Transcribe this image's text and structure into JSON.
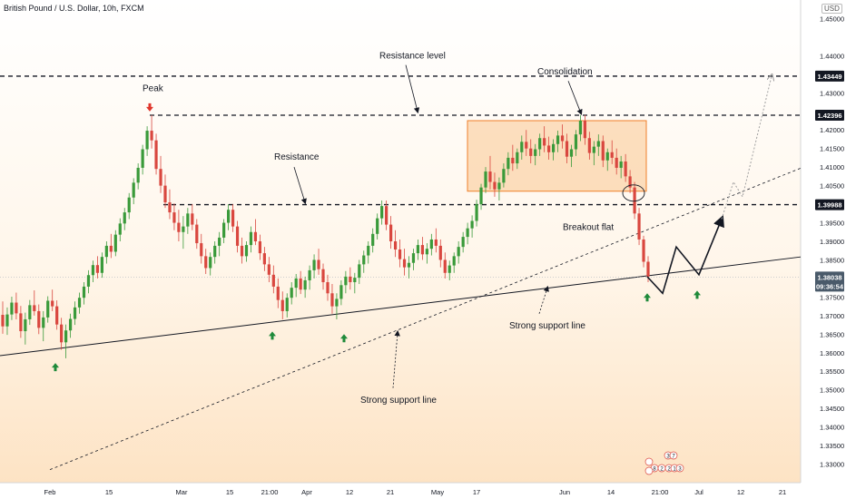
{
  "header": {
    "symbol_title": "British Pound / U.S. Dollar, 10h, FXCM",
    "currency": "USD"
  },
  "colors": {
    "up": "#26a69a",
    "up_candle": "#3a9a3a",
    "down": "#d9473f",
    "consolidation_fill": "#f9c690",
    "consolidation_stroke": "#ef7f2a",
    "arrow_up": "#1f8a3a",
    "arrow_down": "#e0352b",
    "price_tag_dark": "#131722",
    "price_tag_current": "#4a5a6a"
  },
  "chart_data": {
    "type": "candlestick",
    "ylim": [
      1.325,
      1.455
    ],
    "y_ticks": [
      "1.45000",
      "1.44000",
      "1.43000",
      "1.42000",
      "1.41500",
      "1.41000",
      "1.40500",
      "1.40000",
      "1.39500",
      "1.39000",
      "1.38500",
      "1.38000",
      "1.37500",
      "1.37000",
      "1.36500",
      "1.36000",
      "1.35500",
      "1.35000",
      "1.34500",
      "1.34000",
      "1.33500",
      "1.33000"
    ],
    "x_ticks": [
      "Feb",
      "15",
      "Mar",
      "15",
      "21:00",
      "Apr",
      "12",
      "21",
      "May",
      "17",
      "Jun",
      "14",
      "21:00",
      "Jul",
      "12",
      "21"
    ],
    "price_labels": [
      {
        "value": 1.43449,
        "text": "1.43449"
      },
      {
        "value": 1.42396,
        "text": "1.42396"
      },
      {
        "value": 1.39988,
        "text": "1.39988"
      }
    ],
    "current_price": {
      "value": 1.38038,
      "text": "1.38038",
      "countdown": "09:36:54"
    },
    "horizontal_levels": [
      1.43449,
      1.42396,
      1.39988
    ],
    "annotations": {
      "peak": "Peak",
      "resistance_level": "Resistance level",
      "resistance": "Resistance",
      "consolidation": "Consolidation",
      "breakout_flat": "Breakout flat",
      "strong_support_line_right": "Strong support line",
      "strong_support_line_left": "Strong support line"
    },
    "event_badges": [
      "3",
      "7",
      "8",
      "2",
      "2",
      "1",
      "3"
    ],
    "candles_ohlc": [
      [
        1.3702,
        1.3738,
        1.3651,
        1.3671
      ],
      [
        1.3671,
        1.3722,
        1.3648,
        1.3703
      ],
      [
        1.3703,
        1.3751,
        1.3688,
        1.3735
      ],
      [
        1.3735,
        1.3762,
        1.369,
        1.3706
      ],
      [
        1.3706,
        1.3726,
        1.364,
        1.3658
      ],
      [
        1.3658,
        1.3708,
        1.3622,
        1.369
      ],
      [
        1.369,
        1.3742,
        1.3675,
        1.3728
      ],
      [
        1.3728,
        1.3768,
        1.37,
        1.3712
      ],
      [
        1.3712,
        1.373,
        1.365,
        1.3667
      ],
      [
        1.3667,
        1.3712,
        1.3631,
        1.3695
      ],
      [
        1.3695,
        1.3752,
        1.3681,
        1.374
      ],
      [
        1.374,
        1.377,
        1.3712,
        1.3725
      ],
      [
        1.3725,
        1.3741,
        1.3662,
        1.3676
      ],
      [
        1.3676,
        1.3694,
        1.3608,
        1.3628
      ],
      [
        1.3628,
        1.3676,
        1.3585,
        1.366
      ],
      [
        1.366,
        1.3705,
        1.364,
        1.3691
      ],
      [
        1.3691,
        1.3738,
        1.3675,
        1.3722
      ],
      [
        1.3722,
        1.3762,
        1.3705,
        1.3748
      ],
      [
        1.3748,
        1.379,
        1.373,
        1.3778
      ],
      [
        1.3778,
        1.3822,
        1.376,
        1.3809
      ],
      [
        1.3809,
        1.3848,
        1.379,
        1.3836
      ],
      [
        1.3836,
        1.386,
        1.38,
        1.3815
      ],
      [
        1.3815,
        1.387,
        1.3802,
        1.3858
      ],
      [
        1.3858,
        1.39,
        1.384,
        1.3888
      ],
      [
        1.3888,
        1.392,
        1.3855,
        1.3872
      ],
      [
        1.3872,
        1.393,
        1.386,
        1.3918
      ],
      [
        1.3918,
        1.3962,
        1.39,
        1.3948
      ],
      [
        1.3948,
        1.399,
        1.393,
        1.3978
      ],
      [
        1.3978,
        1.403,
        1.396,
        1.4018
      ],
      [
        1.4018,
        1.407,
        1.4,
        1.4058
      ],
      [
        1.4058,
        1.411,
        1.404,
        1.4098
      ],
      [
        1.4098,
        1.416,
        1.408,
        1.4148
      ],
      [
        1.4148,
        1.421,
        1.413,
        1.4198
      ],
      [
        1.4198,
        1.424,
        1.415,
        1.4172
      ],
      [
        1.4172,
        1.419,
        1.408,
        1.4095
      ],
      [
        1.4095,
        1.413,
        1.403,
        1.405
      ],
      [
        1.405,
        1.408,
        1.399,
        1.4005
      ],
      [
        1.4005,
        1.404,
        1.396,
        1.3978
      ],
      [
        1.3978,
        1.4002,
        1.393,
        1.395
      ],
      [
        1.395,
        1.3985,
        1.39,
        1.3925
      ],
      [
        1.3925,
        1.3968,
        1.388,
        1.394
      ],
      [
        1.394,
        1.399,
        1.392,
        1.3975
      ],
      [
        1.3975,
        1.4,
        1.393,
        1.3945
      ],
      [
        1.3945,
        1.396,
        1.388,
        1.3895
      ],
      [
        1.3895,
        1.392,
        1.384,
        1.386
      ],
      [
        1.386,
        1.388,
        1.3812,
        1.3828
      ],
      [
        1.3828,
        1.387,
        1.3808,
        1.3858
      ],
      [
        1.3858,
        1.39,
        1.384,
        1.3888
      ],
      [
        1.3888,
        1.3925,
        1.386,
        1.391
      ],
      [
        1.391,
        1.396,
        1.3895,
        1.395
      ],
      [
        1.395,
        1.4,
        1.393,
        1.3985
      ],
      [
        1.3985,
        1.4,
        1.3925,
        1.394
      ],
      [
        1.394,
        1.3955,
        1.387,
        1.3888
      ],
      [
        1.3888,
        1.391,
        1.384,
        1.386
      ],
      [
        1.386,
        1.39,
        1.3845,
        1.389
      ],
      [
        1.389,
        1.394,
        1.387,
        1.3925
      ],
      [
        1.3925,
        1.396,
        1.389,
        1.39
      ],
      [
        1.39,
        1.3918,
        1.385,
        1.3868
      ],
      [
        1.3868,
        1.3885,
        1.382,
        1.3838
      ],
      [
        1.3838,
        1.3858,
        1.379,
        1.381
      ],
      [
        1.381,
        1.3835,
        1.376,
        1.3778
      ],
      [
        1.3778,
        1.38,
        1.372,
        1.3742
      ],
      [
        1.3742,
        1.3765,
        1.369,
        1.3712
      ],
      [
        1.3712,
        1.376,
        1.3695,
        1.3748
      ],
      [
        1.3748,
        1.379,
        1.373,
        1.3775
      ],
      [
        1.3775,
        1.3812,
        1.375,
        1.38
      ],
      [
        1.38,
        1.382,
        1.3758,
        1.377
      ],
      [
        1.377,
        1.3805,
        1.3748,
        1.3795
      ],
      [
        1.3795,
        1.3835,
        1.377,
        1.3822
      ],
      [
        1.3822,
        1.3865,
        1.38,
        1.385
      ],
      [
        1.385,
        1.388,
        1.381,
        1.3825
      ],
      [
        1.3825,
        1.384,
        1.377,
        1.379
      ],
      [
        1.379,
        1.381,
        1.374,
        1.376
      ],
      [
        1.376,
        1.3785,
        1.3705,
        1.3725
      ],
      [
        1.3725,
        1.376,
        1.369,
        1.3745
      ],
      [
        1.3745,
        1.3795,
        1.3728,
        1.3782
      ],
      [
        1.3782,
        1.382,
        1.376,
        1.3805
      ],
      [
        1.3805,
        1.383,
        1.377,
        1.379
      ],
      [
        1.379,
        1.3815,
        1.376,
        1.3802
      ],
      [
        1.3802,
        1.385,
        1.3785,
        1.3838
      ],
      [
        1.3838,
        1.3875,
        1.3815,
        1.3862
      ],
      [
        1.3862,
        1.39,
        1.384,
        1.3888
      ],
      [
        1.3888,
        1.3935,
        1.387,
        1.392
      ],
      [
        1.392,
        1.3975,
        1.3905,
        1.3962
      ],
      [
        1.3962,
        1.401,
        1.3945,
        1.3995
      ],
      [
        1.3995,
        1.401,
        1.393,
        1.3945
      ],
      [
        1.3945,
        1.3968,
        1.388,
        1.39
      ],
      [
        1.39,
        1.393,
        1.3858,
        1.3878
      ],
      [
        1.3878,
        1.3905,
        1.383,
        1.3852
      ],
      [
        1.3852,
        1.388,
        1.3808,
        1.383
      ],
      [
        1.383,
        1.386,
        1.38,
        1.3842
      ],
      [
        1.3842,
        1.388,
        1.3822,
        1.3868
      ],
      [
        1.3868,
        1.3905,
        1.385,
        1.389
      ],
      [
        1.389,
        1.3912,
        1.385,
        1.3865
      ],
      [
        1.3865,
        1.3895,
        1.384,
        1.388
      ],
      [
        1.388,
        1.392,
        1.3862,
        1.3905
      ],
      [
        1.3905,
        1.3935,
        1.387,
        1.3888
      ],
      [
        1.3888,
        1.3905,
        1.383,
        1.385
      ],
      [
        1.385,
        1.387,
        1.38,
        1.3815
      ],
      [
        1.3815,
        1.3848,
        1.3795,
        1.3835
      ],
      [
        1.3835,
        1.387,
        1.3815,
        1.386
      ],
      [
        1.386,
        1.39,
        1.384,
        1.3885
      ],
      [
        1.3885,
        1.3925,
        1.387,
        1.3912
      ],
      [
        1.3912,
        1.395,
        1.3892,
        1.3935
      ],
      [
        1.3935,
        1.397,
        1.391,
        1.3955
      ],
      [
        1.3955,
        1.4012,
        1.394,
        1.4
      ],
      [
        1.4,
        1.4055,
        1.3985,
        1.4045
      ],
      [
        1.4045,
        1.41,
        1.403,
        1.4088
      ],
      [
        1.4088,
        1.413,
        1.404,
        1.406
      ],
      [
        1.406,
        1.4085,
        1.402,
        1.404
      ],
      [
        1.404,
        1.4072,
        1.401,
        1.4058
      ],
      [
        1.4058,
        1.411,
        1.4045,
        1.4095
      ],
      [
        1.4095,
        1.414,
        1.4078,
        1.4125
      ],
      [
        1.4125,
        1.416,
        1.409,
        1.411
      ],
      [
        1.411,
        1.415,
        1.4095,
        1.414
      ],
      [
        1.414,
        1.4185,
        1.412,
        1.4168
      ],
      [
        1.4168,
        1.42,
        1.413,
        1.415
      ],
      [
        1.415,
        1.4175,
        1.411,
        1.413
      ],
      [
        1.413,
        1.4162,
        1.4105,
        1.4148
      ],
      [
        1.4148,
        1.419,
        1.413,
        1.4178
      ],
      [
        1.4178,
        1.421,
        1.414,
        1.4158
      ],
      [
        1.4158,
        1.4182,
        1.412,
        1.414
      ],
      [
        1.414,
        1.4175,
        1.4118,
        1.4162
      ],
      [
        1.4162,
        1.4198,
        1.414,
        1.4185
      ],
      [
        1.4185,
        1.4215,
        1.415,
        1.417
      ],
      [
        1.417,
        1.419,
        1.411,
        1.4128
      ],
      [
        1.4128,
        1.416,
        1.41,
        1.4148
      ],
      [
        1.4148,
        1.42,
        1.413,
        1.4188
      ],
      [
        1.4188,
        1.424,
        1.417,
        1.4225
      ],
      [
        1.4225,
        1.424,
        1.416,
        1.4178
      ],
      [
        1.4178,
        1.4195,
        1.412,
        1.4138
      ],
      [
        1.4138,
        1.417,
        1.4105,
        1.4155
      ],
      [
        1.4155,
        1.4188,
        1.413,
        1.417
      ],
      [
        1.417,
        1.4185,
        1.41,
        1.4118
      ],
      [
        1.4118,
        1.415,
        1.409,
        1.414
      ],
      [
        1.414,
        1.4172,
        1.4108,
        1.4125
      ],
      [
        1.4125,
        1.415,
        1.408,
        1.4098
      ],
      [
        1.4098,
        1.413,
        1.407,
        1.4115
      ],
      [
        1.4115,
        1.4135,
        1.406,
        1.4075
      ],
      [
        1.4075,
        1.4092,
        1.403,
        1.4045
      ],
      [
        1.4045,
        1.406,
        1.396,
        1.3975
      ],
      [
        1.3975,
        1.399,
        1.389,
        1.3905
      ],
      [
        1.3905,
        1.3915,
        1.383,
        1.3845
      ],
      [
        1.3845,
        1.386,
        1.379,
        1.3805
      ]
    ],
    "projection": {
      "solid_path": [
        [
          1.3805,
          0
        ],
        [
          1.376,
          1
        ],
        [
          1.3885,
          2
        ],
        [
          1.381,
          3
        ],
        [
          1.396,
          4
        ]
      ],
      "dotted_path": [
        [
          1.396,
          4
        ],
        [
          1.406,
          5
        ],
        [
          1.402,
          6
        ],
        [
          1.4345,
          7
        ]
      ]
    }
  }
}
